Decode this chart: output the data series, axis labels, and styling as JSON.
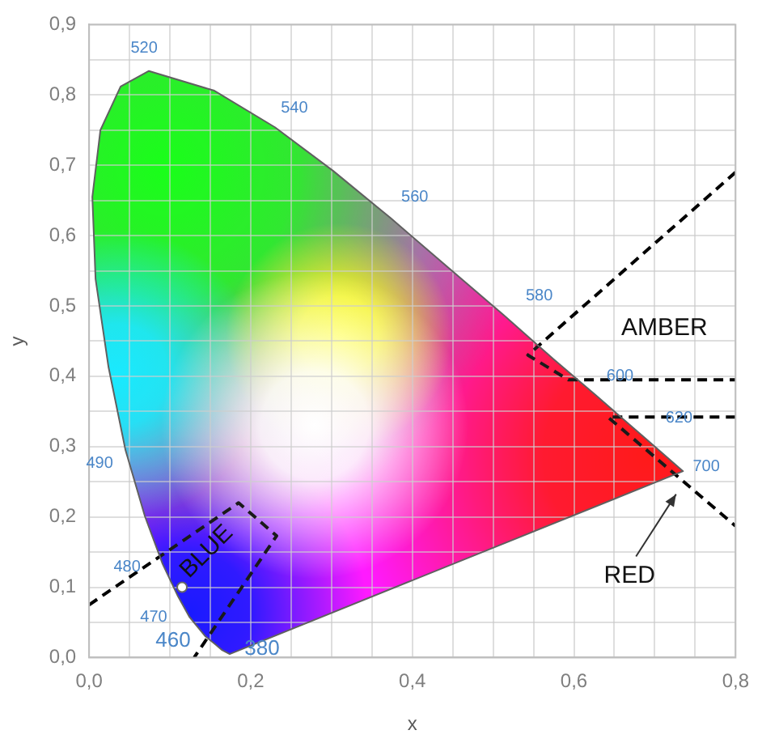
{
  "chart_data": {
    "type": "line",
    "xlabel": "x",
    "ylabel": "y",
    "xlim": [
      0,
      0.8
    ],
    "xticks": [
      {
        "value": 0,
        "label": "0,0"
      },
      {
        "value": 0.05,
        "label": null
      },
      {
        "value": 0.1,
        "label": null
      },
      {
        "value": 0.15,
        "label": null
      },
      {
        "value": 0.2,
        "label": "0,2"
      },
      {
        "value": 0.25,
        "label": null
      },
      {
        "value": 0.3,
        "label": null
      },
      {
        "value": 0.35,
        "label": null
      },
      {
        "value": 0.4,
        "label": "0,4"
      },
      {
        "value": 0.45,
        "label": null
      },
      {
        "value": 0.5,
        "label": null
      },
      {
        "value": 0.55,
        "label": null
      },
      {
        "value": 0.6,
        "label": "0,6"
      },
      {
        "value": 0.65,
        "label": null
      },
      {
        "value": 0.7,
        "label": null
      },
      {
        "value": 0.75,
        "label": null
      },
      {
        "value": 0.8,
        "label": "0,8"
      }
    ],
    "ylim": [
      0,
      0.9
    ],
    "yticks": [
      {
        "value": 0,
        "label": "0,0"
      },
      {
        "value": 0.05,
        "label": null
      },
      {
        "value": 0.1,
        "label": "0,1"
      },
      {
        "value": 0.15,
        "label": null
      },
      {
        "value": 0.2,
        "label": "0,2"
      },
      {
        "value": 0.25,
        "label": null
      },
      {
        "value": 0.3,
        "label": "0,3"
      },
      {
        "value": 0.35,
        "label": null
      },
      {
        "value": 0.4,
        "label": "0,4"
      },
      {
        "value": 0.45,
        "label": null
      },
      {
        "value": 0.5,
        "label": "0,5"
      },
      {
        "value": 0.55,
        "label": null
      },
      {
        "value": 0.6,
        "label": "0,6"
      },
      {
        "value": 0.65,
        "label": null
      },
      {
        "value": 0.7,
        "label": "0,7"
      },
      {
        "value": 0.75,
        "label": null
      },
      {
        "value": 0.8,
        "label": "0,8"
      },
      {
        "value": 0.85,
        "label": null
      },
      {
        "value": 0.9,
        "label": "0,9"
      }
    ],
    "grid": true,
    "legend": false,
    "marker": "none",
    "series": [
      {
        "type": "area",
        "color": "#606060",
        "x": [
          0.174,
          0.164,
          0.157,
          0.144,
          0.124,
          0.11,
          0.091,
          0.069,
          0.045,
          0.024,
          0.008,
          0.004,
          0.014,
          0.039,
          0.074,
          0.155,
          0.23,
          0.302,
          0.373,
          0.444,
          0.513,
          0.575,
          0.627,
          0.666,
          0.692,
          0.735,
          0.174
        ],
        "values": [
          0.005,
          0.011,
          0.018,
          0.03,
          0.058,
          0.087,
          0.133,
          0.201,
          0.295,
          0.413,
          0.538,
          0.655,
          0.75,
          0.812,
          0.834,
          0.806,
          0.754,
          0.692,
          0.625,
          0.555,
          0.487,
          0.424,
          0.373,
          0.334,
          0.308,
          0.265,
          0.005
        ]
      },
      {
        "line_style": "dashed",
        "color": "#000000",
        "x": [
          0.0,
          0.185,
          0.232,
          0.13
        ],
        "values": [
          0.075,
          0.22,
          0.173,
          0.0
        ]
      },
      {
        "line_style": "dashed",
        "color": "#000000",
        "x": [
          0.8,
          0.543,
          0.593,
          0.8
        ],
        "values": [
          0.69,
          0.43,
          0.395,
          0.395
        ]
      },
      {
        "line_style": "dashed",
        "color": "#000000",
        "x": [
          0.8,
          0.642,
          0.8
        ],
        "values": [
          0.342,
          0.342,
          0.187
        ]
      },
      {
        "type": "scatter",
        "marker": "circle",
        "color": "#ffffff",
        "x": [
          0.115
        ],
        "values": [
          0.1
        ]
      }
    ],
    "annotations": [
      {
        "text": "520",
        "x": 0.074,
        "y": 0.834
      },
      {
        "text": "540",
        "x": 0.23,
        "y": 0.754
      },
      {
        "text": "560",
        "x": 0.373,
        "y": 0.625
      },
      {
        "text": "580",
        "x": 0.513,
        "y": 0.487
      },
      {
        "text": "600",
        "x": 0.627,
        "y": 0.373
      },
      {
        "text": "620",
        "x": 0.692,
        "y": 0.308
      },
      {
        "text": "700",
        "x": 0.735,
        "y": 0.265
      },
      {
        "text": "490",
        "x": 0.045,
        "y": 0.295
      },
      {
        "text": "480",
        "x": 0.091,
        "y": 0.133
      },
      {
        "text": "470",
        "x": 0.124,
        "y": 0.058
      },
      {
        "text": "460",
        "x": 0.144,
        "y": 0.03
      },
      {
        "text": "380",
        "x": 0.174,
        "y": 0.005
      },
      "BLUE",
      "AMBER",
      "RED"
    ]
  }
}
